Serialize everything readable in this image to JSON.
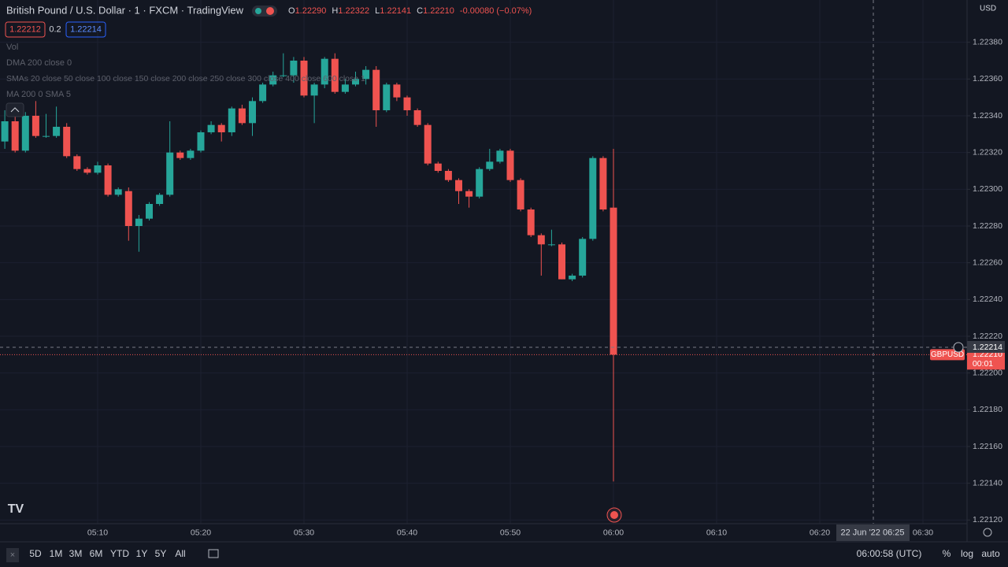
{
  "header": {
    "symbol": "British Pound / U.S. Dollar · 1 · FXCM · TradingView",
    "o_label": "O",
    "o": "1.22290",
    "h_label": "H",
    "h": "1.22322",
    "l_label": "L",
    "l": "1.22141",
    "c_label": "C",
    "c": "1.22210",
    "change": "-0.00080 (−0.07%)",
    "bid": "1.22212",
    "spread": "0.2",
    "ask": "1.22214"
  },
  "indicators": [
    "Vol",
    "DMA 200 close 0",
    "SMAs 20 close 50 close 100 close 150 close 200 close 250 close 300 close 400 close 600 close 1",
    "MA 200 0 SMA 5"
  ],
  "price_axis": {
    "currency": "USD",
    "symbol_tag": "GBPUSD",
    "last_price": "1.22210",
    "countdown": "00:01"
  },
  "crosshair": {
    "price": {
      "value": 1.22214,
      "label": "1.22214"
    },
    "time_label": "22 Jun '22 06:25"
  },
  "bottom_bar": {
    "ranges": [
      "5D",
      "1M",
      "3M",
      "6M",
      "YTD",
      "1Y",
      "5Y",
      "All"
    ],
    "clock": "06:00:58 (UTC)",
    "options": [
      "%",
      "log",
      "auto"
    ]
  },
  "chart_data": {
    "type": "candlestick",
    "up_color": "#26a69a",
    "down_color": "#ef5350",
    "grid": true,
    "time_labels": [
      "05:10",
      "05:20",
      "05:30",
      "05:40",
      "05:50",
      "06:00",
      "06:10",
      "06:20",
      "06:30"
    ],
    "open": [
      1.22326,
      1.22337,
      1.22321,
      1.2234,
      1.22329,
      1.22329,
      1.22334,
      1.22318,
      1.22311,
      1.22309,
      1.22313,
      1.22297,
      1.22299,
      1.2228,
      1.22284,
      1.22292,
      1.22297,
      1.2232,
      1.22317,
      1.22321,
      1.22331,
      1.22335,
      1.22331,
      1.22344,
      1.22336,
      1.22348,
      1.22357,
      1.22362,
      1.22362,
      1.2237,
      1.22351,
      1.22357,
      1.22371,
      1.22353,
      1.22357,
      1.2236,
      1.22365,
      1.22343,
      1.22357,
      1.2235,
      1.22343,
      1.22335,
      1.22314,
      1.2231,
      1.22305,
      1.22299,
      1.22296,
      1.22311,
      1.22315,
      1.22321,
      1.22305,
      1.22289,
      1.22275,
      1.2227,
      1.2227,
      1.22251,
      1.22253,
      1.22273,
      1.22317,
      1.2229
    ],
    "high": [
      1.22343,
      1.22343,
      1.22342,
      1.22348,
      1.22341,
      1.22345,
      1.22336,
      1.22319,
      1.22312,
      1.22315,
      1.22314,
      1.22301,
      1.22301,
      1.22286,
      1.22293,
      1.22298,
      1.22337,
      1.22321,
      1.22322,
      1.22332,
      1.22337,
      1.22336,
      1.22345,
      1.22346,
      1.2235,
      1.22358,
      1.22364,
      1.22374,
      1.22372,
      1.22372,
      1.22358,
      1.22372,
      1.22374,
      1.2236,
      1.22364,
      1.22367,
      1.22367,
      1.22358,
      1.22358,
      1.22351,
      1.22344,
      1.22336,
      1.22315,
      1.22311,
      1.22306,
      1.223,
      1.22312,
      1.22322,
      1.22322,
      1.22322,
      1.22306,
      1.2229,
      1.22276,
      1.22278,
      1.22271,
      1.22254,
      1.22274,
      1.22318,
      1.22318,
      1.22322
    ],
    "low": [
      1.22322,
      1.2232,
      1.2232,
      1.22328,
      1.22328,
      1.22328,
      1.22317,
      1.2231,
      1.22308,
      1.22308,
      1.22296,
      1.22296,
      1.22272,
      1.22266,
      1.22283,
      1.22291,
      1.22296,
      1.22316,
      1.22316,
      1.2232,
      1.2233,
      1.22326,
      1.22329,
      1.22335,
      1.22329,
      1.22347,
      1.22356,
      1.22361,
      1.22358,
      1.2235,
      1.22336,
      1.22355,
      1.22352,
      1.22352,
      1.22356,
      1.22357,
      1.22334,
      1.22342,
      1.22348,
      1.2234,
      1.22334,
      1.22313,
      1.22309,
      1.22304,
      1.22292,
      1.2229,
      1.22295,
      1.2231,
      1.22314,
      1.22304,
      1.22288,
      1.22274,
      1.22253,
      1.22269,
      1.22251,
      1.2225,
      1.22252,
      1.22272,
      1.22288,
      1.22141
    ],
    "close": [
      1.22337,
      1.22321,
      1.2234,
      1.22329,
      1.22329,
      1.22334,
      1.22318,
      1.22311,
      1.22309,
      1.22313,
      1.22297,
      1.223,
      1.2228,
      1.22284,
      1.22292,
      1.22297,
      1.2232,
      1.22317,
      1.22321,
      1.22331,
      1.22335,
      1.22331,
      1.22344,
      1.22336,
      1.22348,
      1.22357,
      1.22362,
      1.22362,
      1.2237,
      1.22351,
      1.22357,
      1.22371,
      1.22353,
      1.22357,
      1.2236,
      1.22365,
      1.22343,
      1.22357,
      1.2235,
      1.22343,
      1.22335,
      1.22314,
      1.2231,
      1.22305,
      1.22299,
      1.22296,
      1.22311,
      1.22315,
      1.22321,
      1.22305,
      1.22289,
      1.22275,
      1.2227,
      1.2227,
      1.22251,
      1.22253,
      1.22273,
      1.22317,
      1.22289,
      1.2221
    ],
    "ylim": [
      1.22118,
      1.22403
    ],
    "yticks": [
      {
        "value": 1.2212,
        "label": "1.22120"
      },
      {
        "value": 1.2214,
        "label": "1.22140"
      },
      {
        "value": 1.2216,
        "label": "1.22160"
      },
      {
        "value": 1.2218,
        "label": "1.22180"
      },
      {
        "value": 1.222,
        "label": "1.22200"
      },
      {
        "value": 1.2222,
        "label": "1.22220"
      },
      {
        "value": 1.2224,
        "label": "1.22240"
      },
      {
        "value": 1.2226,
        "label": "1.22260"
      },
      {
        "value": 1.2228,
        "label": "1.22280"
      },
      {
        "value": 1.223,
        "label": "1.22300"
      },
      {
        "value": 1.2232,
        "label": "1.22320"
      },
      {
        "value": 1.2234,
        "label": "1.22340"
      },
      {
        "value": 1.2236,
        "label": "1.22360"
      },
      {
        "value": 1.2238,
        "label": "1.22380"
      }
    ]
  }
}
